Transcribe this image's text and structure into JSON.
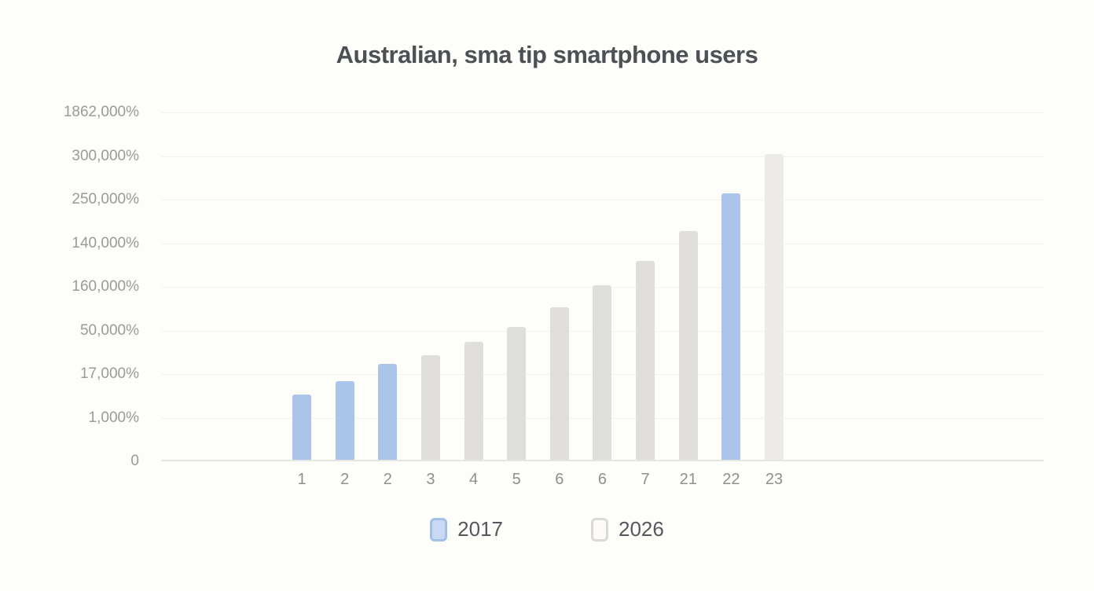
{
  "page": {
    "background": "#fdfdfa"
  },
  "header": {
    "title": "Australian, sma tip smartphone users",
    "title_color": "#4d5156"
  },
  "y_axis": {
    "labels_top_to_bottom": [
      "1862,000%",
      "300,000%",
      "250,000%",
      "140,000%",
      "160,000%",
      "50,000%",
      "17,000%",
      "1,000%",
      "0"
    ],
    "label_color": "#9a9a9a"
  },
  "x_axis": {
    "labels": [
      "1",
      "2",
      "2",
      "3",
      "4",
      "5",
      "6",
      "6",
      "7",
      "21",
      "22",
      "23"
    ],
    "label_color": "#8f8f8f"
  },
  "legend": {
    "items": [
      {
        "label": "2017",
        "swatch_fill": "#c9d8f3",
        "swatch_border": "#a2bfe8"
      },
      {
        "label": "2026",
        "swatch_fill": "#fcfbfa",
        "swatch_border": "#dbd9d6"
      }
    ],
    "text_color": "#54585d"
  },
  "chart_data": {
    "type": "bar",
    "title": "Australian, sma tip smartphone users",
    "categories": [
      "1",
      "2",
      "2",
      "3",
      "4",
      "5",
      "6",
      "6",
      "7",
      "21",
      "22",
      "23"
    ],
    "y_tick_labels_top_to_bottom": [
      "1862,000%",
      "300,000%",
      "250,000%",
      "140,000%",
      "160,000%",
      "50,000%",
      "17,000%",
      "1,000%",
      "0"
    ],
    "value_unit": "gridline_steps_above_baseline",
    "ylim": [
      0,
      8
    ],
    "grid": "faint horizontal line at every tick",
    "legend_position": "bottom-center",
    "legend_entries": [
      "2017",
      "2026"
    ],
    "series_colors": {
      "2017": "#aac4ea",
      "2026": "#dfdedc"
    },
    "bars": [
      {
        "category": "1",
        "series": "2017",
        "value": 1.5,
        "color": "#aac4ea"
      },
      {
        "category": "2",
        "series": "2017",
        "value": 1.8,
        "color": "#aac4ea"
      },
      {
        "category": "2",
        "series": "2017",
        "value": 2.2,
        "color": "#aac4ea"
      },
      {
        "category": "3",
        "series": "2026",
        "value": 2.4,
        "color": "#dfdedc"
      },
      {
        "category": "4",
        "series": "2026",
        "value": 2.7,
        "color": "#dfdedc"
      },
      {
        "category": "5",
        "series": "2026",
        "value": 3.05,
        "color": "#dfdedc"
      },
      {
        "category": "6",
        "series": "2026",
        "value": 3.5,
        "color": "#dfdedc"
      },
      {
        "category": "6",
        "series": "2026",
        "value": 4.0,
        "color": "#dfdedc"
      },
      {
        "category": "7",
        "series": "2026",
        "value": 4.55,
        "color": "#dfdedc"
      },
      {
        "category": "21",
        "series": "2026",
        "value": 5.25,
        "color": "#dfdedc"
      },
      {
        "category": "22",
        "series": "2017",
        "value": 6.1,
        "color": "#aac4ea"
      },
      {
        "category": "23",
        "series": "2026",
        "value": 7.0,
        "color": "#ecebe8"
      }
    ],
    "colors": {
      "grid": "#f4f2ef",
      "baseline": "#e7e5e2"
    }
  }
}
